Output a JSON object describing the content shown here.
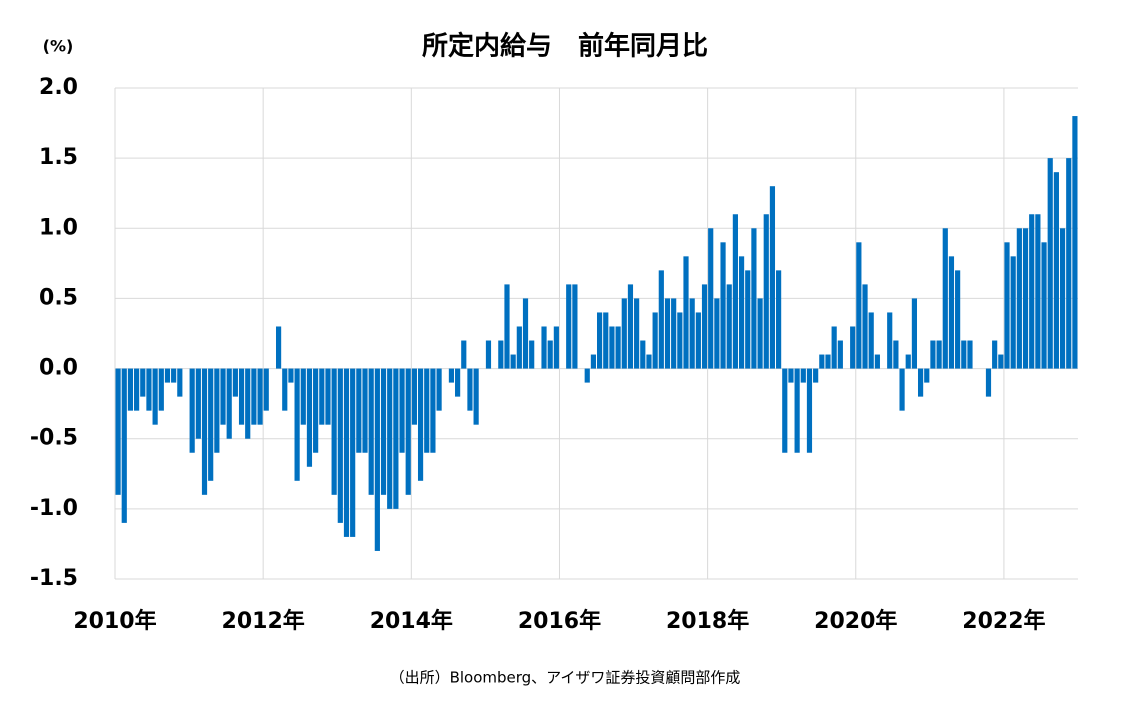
{
  "chart_data": {
    "type": "bar",
    "title": "所定内給与　前年同月比",
    "unit_label": "(%)",
    "source": "（出所）Bloomberg、アイザワ証券投資顧問部作成",
    "color": "#0070c0",
    "negative_tick_color": "#ff0000",
    "grid": true,
    "categories": [
      "2010年",
      null,
      null,
      null,
      null,
      null,
      null,
      null,
      null,
      null,
      null,
      null,
      null,
      null,
      null,
      null,
      null,
      null,
      null,
      null,
      null,
      null,
      null,
      null,
      "2012年",
      null,
      null,
      null,
      null,
      null,
      null,
      null,
      null,
      null,
      null,
      null,
      null,
      null,
      null,
      null,
      null,
      null,
      null,
      null,
      null,
      null,
      null,
      null,
      "2014年",
      null,
      null,
      null,
      null,
      null,
      null,
      null,
      null,
      null,
      null,
      null,
      null,
      null,
      null,
      null,
      null,
      null,
      null,
      null,
      null,
      null,
      null,
      null,
      "2016年",
      null,
      null,
      null,
      null,
      null,
      null,
      null,
      null,
      null,
      null,
      null,
      null,
      null,
      null,
      null,
      null,
      null,
      null,
      null,
      null,
      null,
      null,
      null,
      "2018年",
      null,
      null,
      null,
      null,
      null,
      null,
      null,
      null,
      null,
      null,
      null,
      null,
      null,
      null,
      null,
      null,
      null,
      null,
      null,
      null,
      null,
      null,
      null,
      "2020年",
      null,
      null,
      null,
      null,
      null,
      null,
      null,
      null,
      null,
      null,
      null,
      null,
      null,
      null,
      null,
      null,
      null,
      null,
      null,
      null,
      null,
      null,
      null,
      "2022年",
      null,
      null,
      null,
      null,
      null,
      null,
      null,
      null,
      null,
      null,
      null
    ],
    "values": [
      -0.9,
      -1.1,
      -0.3,
      -0.3,
      -0.2,
      -0.3,
      -0.4,
      -0.3,
      -0.1,
      -0.1,
      -0.2,
      0,
      -0.6,
      -0.5,
      -0.9,
      -0.8,
      -0.6,
      -0.4,
      -0.5,
      -0.2,
      -0.4,
      -0.5,
      -0.4,
      -0.4,
      -0.3,
      0,
      0.3,
      -0.3,
      -0.1,
      -0.8,
      -0.4,
      -0.7,
      -0.6,
      -0.4,
      -0.4,
      -0.9,
      -1.1,
      -1.2,
      -1.2,
      -0.6,
      -0.6,
      -0.9,
      -1.3,
      -0.9,
      -1.0,
      -1.0,
      -0.6,
      -0.9,
      -0.4,
      -0.8,
      -0.6,
      -0.6,
      -0.3,
      0,
      -0.1,
      -0.2,
      0.2,
      -0.3,
      -0.4,
      0,
      0.2,
      0,
      0.2,
      0.6,
      0.1,
      0.3,
      0.5,
      0.2,
      0,
      0.3,
      0.2,
      0.3,
      0,
      0.6,
      0.6,
      0,
      -0.1,
      0.1,
      0.4,
      0.4,
      0.3,
      0.3,
      0.5,
      0.6,
      0.5,
      0.2,
      0.1,
      0.4,
      0.7,
      0.5,
      0.5,
      0.4,
      0.8,
      0.5,
      0.4,
      0.6,
      1.0,
      0.5,
      0.9,
      0.6,
      1.1,
      0.8,
      0.7,
      1.0,
      0.5,
      1.1,
      1.3,
      0.7,
      -0.6,
      -0.1,
      -0.6,
      -0.1,
      -0.6,
      -0.1,
      0.1,
      0.1,
      0.3,
      0.2,
      0,
      0.3,
      0.9,
      0.6,
      0.4,
      0.1,
      0,
      0.4,
      0.2,
      -0.3,
      0.1,
      0.5,
      -0.2,
      -0.1,
      0.2,
      0.2,
      1.0,
      0.8,
      0.7,
      0.2,
      0.2,
      0,
      0,
      -0.2,
      0.2,
      0.1,
      0.9,
      0.8,
      1.0,
      1.0,
      1.1,
      1.1,
      0.9,
      1.5,
      1.4,
      1.0,
      1.5,
      1.8
    ],
    "ylim": [
      -1.5,
      2.0
    ],
    "yticks": [
      {
        "value": -1.5,
        "label": "-1.5"
      },
      {
        "value": -1,
        "label": "-1.0"
      },
      {
        "value": -0.5,
        "label": "-0.5"
      },
      {
        "value": 0,
        "label": "0.0"
      },
      {
        "value": 0.5,
        "label": "0.5"
      },
      {
        "value": 1,
        "label": "1.0"
      },
      {
        "value": 1.5,
        "label": "1.5"
      },
      {
        "value": 2,
        "label": "2.0"
      }
    ]
  }
}
